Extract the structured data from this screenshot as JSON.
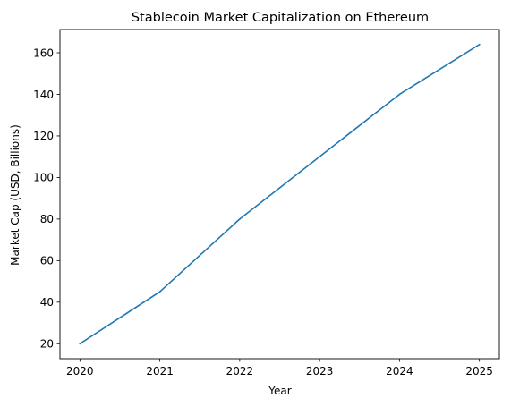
{
  "chart_data": {
    "type": "line",
    "title": "Stablecoin Market Capitalization on Ethereum",
    "xlabel": "Year",
    "ylabel": "Market Cap (USD, Billions)",
    "x": [
      2020,
      2021,
      2022,
      2023,
      2024,
      2025
    ],
    "series": [
      {
        "values": [
          20,
          45,
          80,
          110,
          140,
          164
        ]
      }
    ],
    "xlim": [
      2019.75,
      2025.25
    ],
    "ylim": [
      12.8,
      171.2
    ],
    "xticks": [
      "2020",
      "2021",
      "2022",
      "2023",
      "2024",
      "2025"
    ],
    "yticks": [
      "20",
      "40",
      "60",
      "80",
      "100",
      "120",
      "140",
      "160"
    ],
    "grid": false,
    "colors": {
      "line": "#1f77b4",
      "axes": "#000000"
    }
  }
}
